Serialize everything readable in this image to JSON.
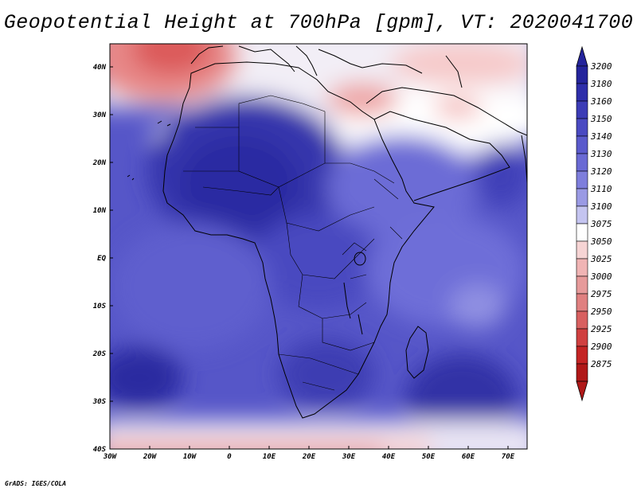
{
  "title": "Geopotential Height at 700hPa [gpm], VT: 2020041700",
  "credit": "GrADS: IGES/COLA",
  "axes": {
    "lat_labels": [
      "40N",
      "30N",
      "20N",
      "10N",
      "EQ",
      "10S",
      "20S",
      "30S",
      "40S"
    ],
    "lon_labels": [
      "30W",
      "20W",
      "10W",
      "0",
      "10E",
      "20E",
      "30E",
      "40E",
      "50E",
      "60E",
      "70E"
    ]
  },
  "colorbar": {
    "levels": [
      "3200",
      "3180",
      "3160",
      "3150",
      "3140",
      "3130",
      "3120",
      "3110",
      "3100",
      "3075",
      "3050",
      "3025",
      "3000",
      "2975",
      "2950",
      "2925",
      "2900",
      "2875"
    ],
    "colors": [
      "#24249c",
      "#2e2eaa",
      "#3c3cb6",
      "#4a4ac2",
      "#5a5acc",
      "#6a6ad4",
      "#7e7edc",
      "#9a9ae4",
      "#c4c4f0",
      "#ffffff",
      "#f6d4d4",
      "#f0b4b4",
      "#e69a9a",
      "#e08080",
      "#d86060",
      "#d04040",
      "#c42424",
      "#b01818"
    ]
  },
  "map": {
    "overview": "Africa, southern Europe, Middle East and the western Indian Ocean"
  }
}
